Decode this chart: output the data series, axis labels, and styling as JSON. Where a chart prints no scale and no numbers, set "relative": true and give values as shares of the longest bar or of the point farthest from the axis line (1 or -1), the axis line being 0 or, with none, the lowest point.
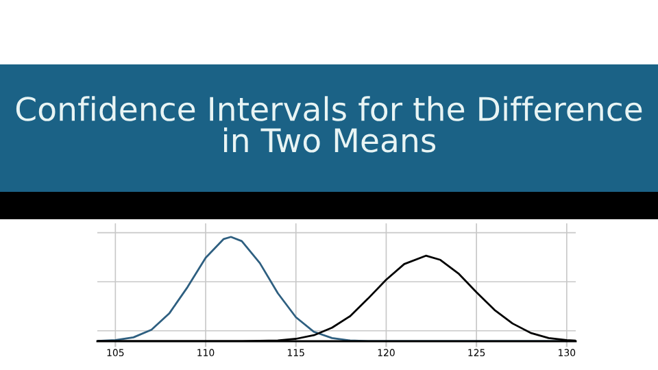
{
  "chart_data": {
    "type": "line",
    "title": "Confidence Intervals for the Difference in Two Means",
    "relative": true,
    "xlim": [
      104,
      130.5
    ],
    "xticks": [
      105,
      110,
      115,
      120,
      125,
      130
    ],
    "grid": true,
    "marker": "none",
    "line_style": "solid",
    "series": [
      {
        "color": "#2e5f80",
        "x": [
          104,
          105,
          106,
          107,
          108,
          109,
          110,
          111,
          111.4,
          112,
          113,
          114,
          115,
          116,
          117,
          118,
          119,
          120,
          125,
          130.5
        ],
        "values": [
          0.002,
          0.01,
          0.037,
          0.11,
          0.27,
          0.52,
          0.8,
          0.98,
          1,
          0.96,
          0.75,
          0.46,
          0.23,
          0.09,
          0.03,
          0.007,
          0,
          0,
          0,
          0
        ]
      },
      {
        "color": "#000000",
        "x": [
          104,
          110,
          112,
          114,
          115,
          116,
          117,
          118,
          119,
          120,
          121,
          122.2,
          123,
          124,
          125,
          126,
          127,
          128,
          129,
          130,
          130.5
        ],
        "values": [
          0,
          0,
          0,
          0.008,
          0.023,
          0.058,
          0.13,
          0.24,
          0.41,
          0.59,
          0.74,
          0.82,
          0.78,
          0.65,
          0.47,
          0.3,
          0.17,
          0.08,
          0.03,
          0.01,
          0.005
        ]
      }
    ]
  }
}
